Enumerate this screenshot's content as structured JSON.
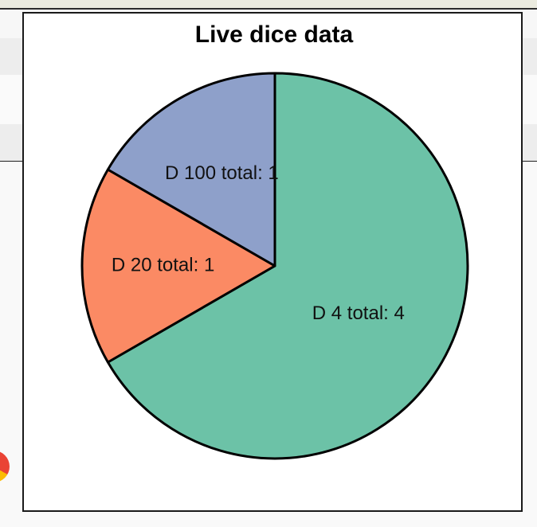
{
  "chart_data": {
    "type": "pie",
    "title": "Live dice data",
    "categories": [
      "D 4",
      "D 20",
      "D 100"
    ],
    "values": [
      4,
      1,
      1
    ],
    "labels": [
      "D 4 total: 4",
      "D 20 total: 1",
      "D 100 total: 1"
    ],
    "colors": [
      "#6cc2a7",
      "#fb8a64",
      "#8ea0ca"
    ],
    "start_angle_deg": 0,
    "direction": "clockwise"
  }
}
